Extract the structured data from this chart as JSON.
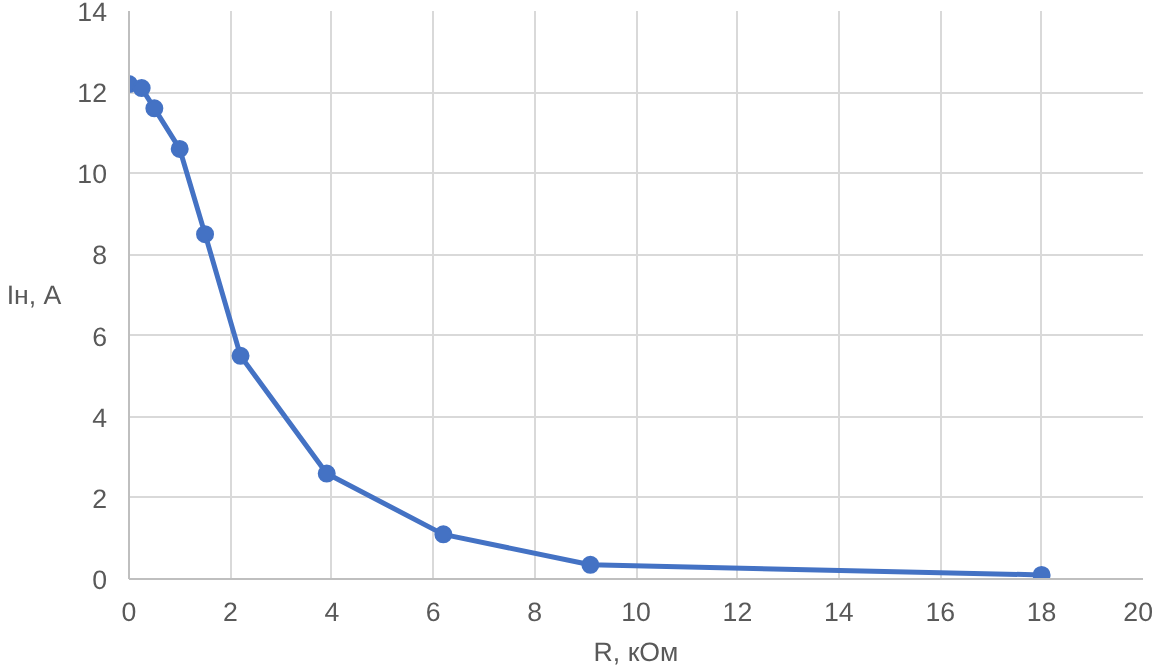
{
  "chart_data": {
    "type": "line",
    "xlabel": "R, кОм",
    "ylabel": "Ін, А",
    "x": [
      0,
      0.25,
      0.5,
      1.0,
      1.5,
      2.2,
      3.9,
      6.2,
      9.1,
      18
    ],
    "series": [
      {
        "color": "#4472c4",
        "values": [
          12.2,
          12.1,
          11.6,
          10.6,
          8.5,
          5.5,
          2.6,
          1.1,
          0.35,
          0.1
        ]
      }
    ],
    "xlim": [
      0,
      20
    ],
    "xticks": [
      0,
      2,
      4,
      6,
      8,
      10,
      12,
      14,
      16,
      18,
      20
    ],
    "ylim": [
      0,
      14
    ],
    "yticks": [
      0,
      2,
      4,
      6,
      8,
      10,
      12,
      14
    ],
    "grid": true,
    "marker": "circle",
    "line_style": "solid"
  }
}
